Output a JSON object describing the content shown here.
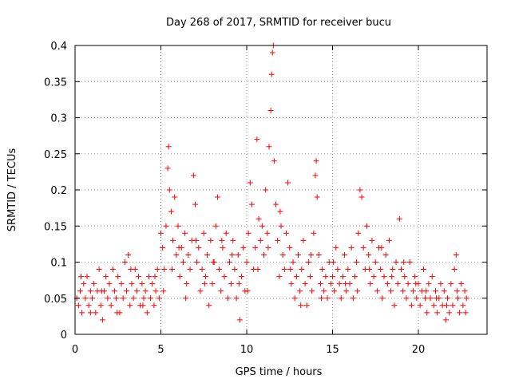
{
  "chart_data": {
    "type": "scatter",
    "title": "Day 268 of 2017, SRMTID for receiver bucu",
    "xlabel": "GPS time / hours",
    "ylabel": "SRMTID / TECUs",
    "xlim": [
      0,
      24
    ],
    "ylim": [
      0,
      0.4
    ],
    "x_ticks": [
      0,
      5,
      10,
      15,
      20
    ],
    "x_tick_labels": [
      "0",
      "5",
      "10",
      "15",
      "20"
    ],
    "y_ticks": [
      0,
      0.05,
      0.1,
      0.15,
      0.2,
      0.25,
      0.3,
      0.35,
      0.4
    ],
    "y_tick_labels": [
      "0",
      "0.05",
      "0.1",
      "0.15",
      "0.2",
      "0.25",
      "0.3",
      "0.35",
      "0.4"
    ],
    "grid": true,
    "marker": "+",
    "color": "#ff0000",
    "series": [
      {
        "name": "SRMTID",
        "points": [
          [
            0.1,
            0.05
          ],
          [
            0.2,
            0.04
          ],
          [
            0.3,
            0.06
          ],
          [
            0.4,
            0.03
          ],
          [
            0.5,
            0.07
          ],
          [
            0.6,
            0.05
          ],
          [
            0.7,
            0.08
          ],
          [
            0.8,
            0.04
          ],
          [
            0.9,
            0.06
          ],
          [
            1.0,
            0.05
          ],
          [
            1.1,
            0.07
          ],
          [
            1.2,
            0.03
          ],
          [
            1.3,
            0.06
          ],
          [
            1.4,
            0.09
          ],
          [
            1.5,
            0.04
          ],
          [
            1.6,
            0.02
          ],
          [
            1.7,
            0.06
          ],
          [
            1.8,
            0.08
          ],
          [
            1.9,
            0.05
          ],
          [
            2.0,
            0.07
          ],
          [
            2.1,
            0.04
          ],
          [
            2.2,
            0.09
          ],
          [
            2.3,
            0.06
          ],
          [
            2.4,
            0.05
          ],
          [
            2.5,
            0.08
          ],
          [
            2.6,
            0.03
          ],
          [
            2.7,
            0.07
          ],
          [
            2.8,
            0.05
          ],
          [
            2.9,
            0.1
          ],
          [
            3.0,
            0.06
          ],
          [
            3.1,
            0.11
          ],
          [
            3.2,
            0.04
          ],
          [
            3.3,
            0.07
          ],
          [
            3.4,
            0.05
          ],
          [
            3.5,
            0.09
          ],
          [
            3.6,
            0.06
          ],
          [
            3.7,
            0.08
          ],
          [
            3.8,
            0.04
          ],
          [
            3.9,
            0.07
          ],
          [
            4.0,
            0.05
          ],
          [
            4.1,
            0.06
          ],
          [
            4.2,
            0.03
          ],
          [
            4.3,
            0.08
          ],
          [
            4.4,
            0.05
          ],
          [
            4.5,
            0.07
          ],
          [
            4.6,
            0.04
          ],
          [
            4.7,
            0.06
          ],
          [
            4.8,
            0.09
          ],
          [
            4.9,
            0.05
          ],
          [
            5.0,
            0.14
          ],
          [
            5.1,
            0.12
          ],
          [
            5.2,
            0.09
          ],
          [
            5.3,
            0.15
          ],
          [
            5.4,
            0.23
          ],
          [
            5.45,
            0.26
          ],
          [
            5.5,
            0.2
          ],
          [
            5.6,
            0.17
          ],
          [
            5.7,
            0.13
          ],
          [
            5.8,
            0.19
          ],
          [
            5.9,
            0.11
          ],
          [
            6.0,
            0.15
          ],
          [
            6.1,
            0.08
          ],
          [
            6.2,
            0.12
          ],
          [
            6.3,
            0.1
          ],
          [
            6.4,
            0.14
          ],
          [
            6.5,
            0.07
          ],
          [
            6.6,
            0.11
          ],
          [
            6.7,
            0.09
          ],
          [
            6.8,
            0.13
          ],
          [
            6.9,
            0.22
          ],
          [
            7.0,
            0.18
          ],
          [
            7.1,
            0.1
          ],
          [
            7.2,
            0.12
          ],
          [
            7.3,
            0.06
          ],
          [
            7.4,
            0.09
          ],
          [
            7.5,
            0.14
          ],
          [
            7.6,
            0.08
          ],
          [
            7.7,
            0.11
          ],
          [
            7.8,
            0.04
          ],
          [
            7.9,
            0.13
          ],
          [
            8.0,
            0.07
          ],
          [
            8.1,
            0.1
          ],
          [
            8.2,
            0.15
          ],
          [
            8.3,
            0.19
          ],
          [
            8.4,
            0.09
          ],
          [
            8.5,
            0.06
          ],
          [
            8.6,
            0.12
          ],
          [
            8.7,
            0.08
          ],
          [
            8.8,
            0.14
          ],
          [
            8.9,
            0.05
          ],
          [
            9.0,
            0.1
          ],
          [
            9.1,
            0.07
          ],
          [
            9.2,
            0.13
          ],
          [
            9.3,
            0.09
          ],
          [
            9.4,
            0.05
          ],
          [
            9.5,
            0.11
          ],
          [
            9.6,
            0.02
          ],
          [
            9.7,
            0.08
          ],
          [
            9.8,
            0.12
          ],
          [
            9.9,
            0.06
          ],
          [
            10.0,
            0.1
          ],
          [
            10.1,
            0.14
          ],
          [
            10.2,
            0.21
          ],
          [
            10.3,
            0.18
          ],
          [
            10.4,
            0.09
          ],
          [
            10.5,
            0.12
          ],
          [
            10.6,
            0.27
          ],
          [
            10.7,
            0.16
          ],
          [
            10.8,
            0.13
          ],
          [
            10.9,
            0.15
          ],
          [
            11.0,
            0.11
          ],
          [
            11.1,
            0.2
          ],
          [
            11.2,
            0.14
          ],
          [
            11.3,
            0.26
          ],
          [
            11.4,
            0.31
          ],
          [
            11.45,
            0.36
          ],
          [
            11.5,
            0.39
          ],
          [
            11.55,
            0.4
          ],
          [
            11.6,
            0.24
          ],
          [
            11.7,
            0.18
          ],
          [
            11.8,
            0.13
          ],
          [
            11.9,
            0.08
          ],
          [
            12.0,
            0.15
          ],
          [
            12.1,
            0.11
          ],
          [
            12.2,
            0.09
          ],
          [
            12.3,
            0.14
          ],
          [
            12.4,
            0.21
          ],
          [
            12.5,
            0.12
          ],
          [
            12.6,
            0.07
          ],
          [
            12.7,
            0.1
          ],
          [
            12.8,
            0.05
          ],
          [
            12.9,
            0.08
          ],
          [
            13.0,
            0.11
          ],
          [
            13.1,
            0.06
          ],
          [
            13.2,
            0.09
          ],
          [
            13.3,
            0.13
          ],
          [
            13.4,
            0.07
          ],
          [
            13.5,
            0.04
          ],
          [
            13.6,
            0.1
          ],
          [
            13.7,
            0.08
          ],
          [
            13.8,
            0.06
          ],
          [
            13.9,
            0.14
          ],
          [
            14.0,
            0.22
          ],
          [
            14.05,
            0.24
          ],
          [
            14.1,
            0.19
          ],
          [
            14.2,
            0.11
          ],
          [
            14.3,
            0.07
          ],
          [
            14.4,
            0.09
          ],
          [
            14.5,
            0.06
          ],
          [
            14.6,
            0.08
          ],
          [
            14.7,
            0.05
          ],
          [
            14.8,
            0.1
          ],
          [
            14.9,
            0.07
          ],
          [
            15.0,
            0.08
          ],
          [
            15.1,
            0.06
          ],
          [
            15.2,
            0.12
          ],
          [
            15.3,
            0.09
          ],
          [
            15.4,
            0.07
          ],
          [
            15.5,
            0.05
          ],
          [
            15.6,
            0.08
          ],
          [
            15.7,
            0.11
          ],
          [
            15.8,
            0.06
          ],
          [
            15.9,
            0.09
          ],
          [
            16.0,
            0.07
          ],
          [
            16.1,
            0.12
          ],
          [
            16.2,
            0.05
          ],
          [
            16.3,
            0.08
          ],
          [
            16.4,
            0.1
          ],
          [
            16.5,
            0.14
          ],
          [
            16.6,
            0.2
          ],
          [
            16.7,
            0.19
          ],
          [
            16.8,
            0.12
          ],
          [
            16.9,
            0.09
          ],
          [
            17.0,
            0.15
          ],
          [
            17.1,
            0.11
          ],
          [
            17.2,
            0.07
          ],
          [
            17.3,
            0.13
          ],
          [
            17.4,
            0.08
          ],
          [
            17.5,
            0.1
          ],
          [
            17.6,
            0.06
          ],
          [
            17.7,
            0.12
          ],
          [
            17.8,
            0.09
          ],
          [
            17.9,
            0.05
          ],
          [
            18.0,
            0.08
          ],
          [
            18.1,
            0.11
          ],
          [
            18.2,
            0.07
          ],
          [
            18.3,
            0.13
          ],
          [
            18.4,
            0.06
          ],
          [
            18.5,
            0.09
          ],
          [
            18.6,
            0.04
          ],
          [
            18.7,
            0.1
          ],
          [
            18.8,
            0.07
          ],
          [
            18.9,
            0.16
          ],
          [
            19.0,
            0.09
          ],
          [
            19.1,
            0.06
          ],
          [
            19.2,
            0.08
          ],
          [
            19.3,
            0.05
          ],
          [
            19.4,
            0.07
          ],
          [
            19.5,
            0.1
          ],
          [
            19.6,
            0.04
          ],
          [
            19.7,
            0.06
          ],
          [
            19.8,
            0.08
          ],
          [
            19.9,
            0.05
          ],
          [
            20.0,
            0.07
          ],
          [
            20.1,
            0.04
          ],
          [
            20.2,
            0.06
          ],
          [
            20.3,
            0.09
          ],
          [
            20.4,
            0.05
          ],
          [
            20.5,
            0.03
          ],
          [
            20.6,
            0.07
          ],
          [
            20.7,
            0.05
          ],
          [
            20.8,
            0.08
          ],
          [
            20.9,
            0.04
          ],
          [
            21.0,
            0.06
          ],
          [
            21.1,
            0.03
          ],
          [
            21.2,
            0.05
          ],
          [
            21.3,
            0.07
          ],
          [
            21.4,
            0.04
          ],
          [
            21.5,
            0.06
          ],
          [
            21.6,
            0.02
          ],
          [
            21.7,
            0.05
          ],
          [
            21.8,
            0.03
          ],
          [
            21.9,
            0.07
          ],
          [
            22.0,
            0.04
          ],
          [
            22.1,
            0.09
          ],
          [
            22.2,
            0.11
          ],
          [
            22.3,
            0.05
          ],
          [
            22.4,
            0.03
          ],
          [
            22.5,
            0.07
          ],
          [
            22.6,
            0.04
          ],
          [
            22.7,
            0.06
          ],
          [
            22.8,
            0.05
          ],
          [
            0.35,
            0.08
          ],
          [
            0.9,
            0.03
          ],
          [
            1.55,
            0.06
          ],
          [
            2.45,
            0.03
          ],
          [
            3.25,
            0.09
          ],
          [
            3.95,
            0.04
          ],
          [
            4.65,
            0.08
          ],
          [
            5.15,
            0.06
          ],
          [
            5.65,
            0.09
          ],
          [
            6.05,
            0.12
          ],
          [
            6.45,
            0.05
          ],
          [
            7.05,
            0.13
          ],
          [
            7.55,
            0.07
          ],
          [
            8.05,
            0.1
          ],
          [
            8.55,
            0.13
          ],
          [
            9.15,
            0.11
          ],
          [
            9.55,
            0.07
          ],
          [
            10.05,
            0.06
          ],
          [
            10.65,
            0.09
          ],
          [
            11.25,
            0.12
          ],
          [
            11.95,
            0.17
          ],
          [
            12.55,
            0.09
          ],
          [
            13.15,
            0.04
          ],
          [
            13.75,
            0.11
          ],
          [
            14.35,
            0.05
          ],
          [
            15.05,
            0.1
          ],
          [
            15.75,
            0.07
          ],
          [
            16.45,
            0.06
          ],
          [
            17.15,
            0.09
          ],
          [
            17.85,
            0.12
          ],
          [
            18.45,
            0.08
          ],
          [
            19.15,
            0.1
          ],
          [
            19.85,
            0.07
          ],
          [
            20.45,
            0.06
          ],
          [
            21.05,
            0.05
          ],
          [
            21.65,
            0.04
          ],
          [
            22.25,
            0.06
          ],
          [
            22.75,
            0.03
          ]
        ]
      }
    ]
  }
}
